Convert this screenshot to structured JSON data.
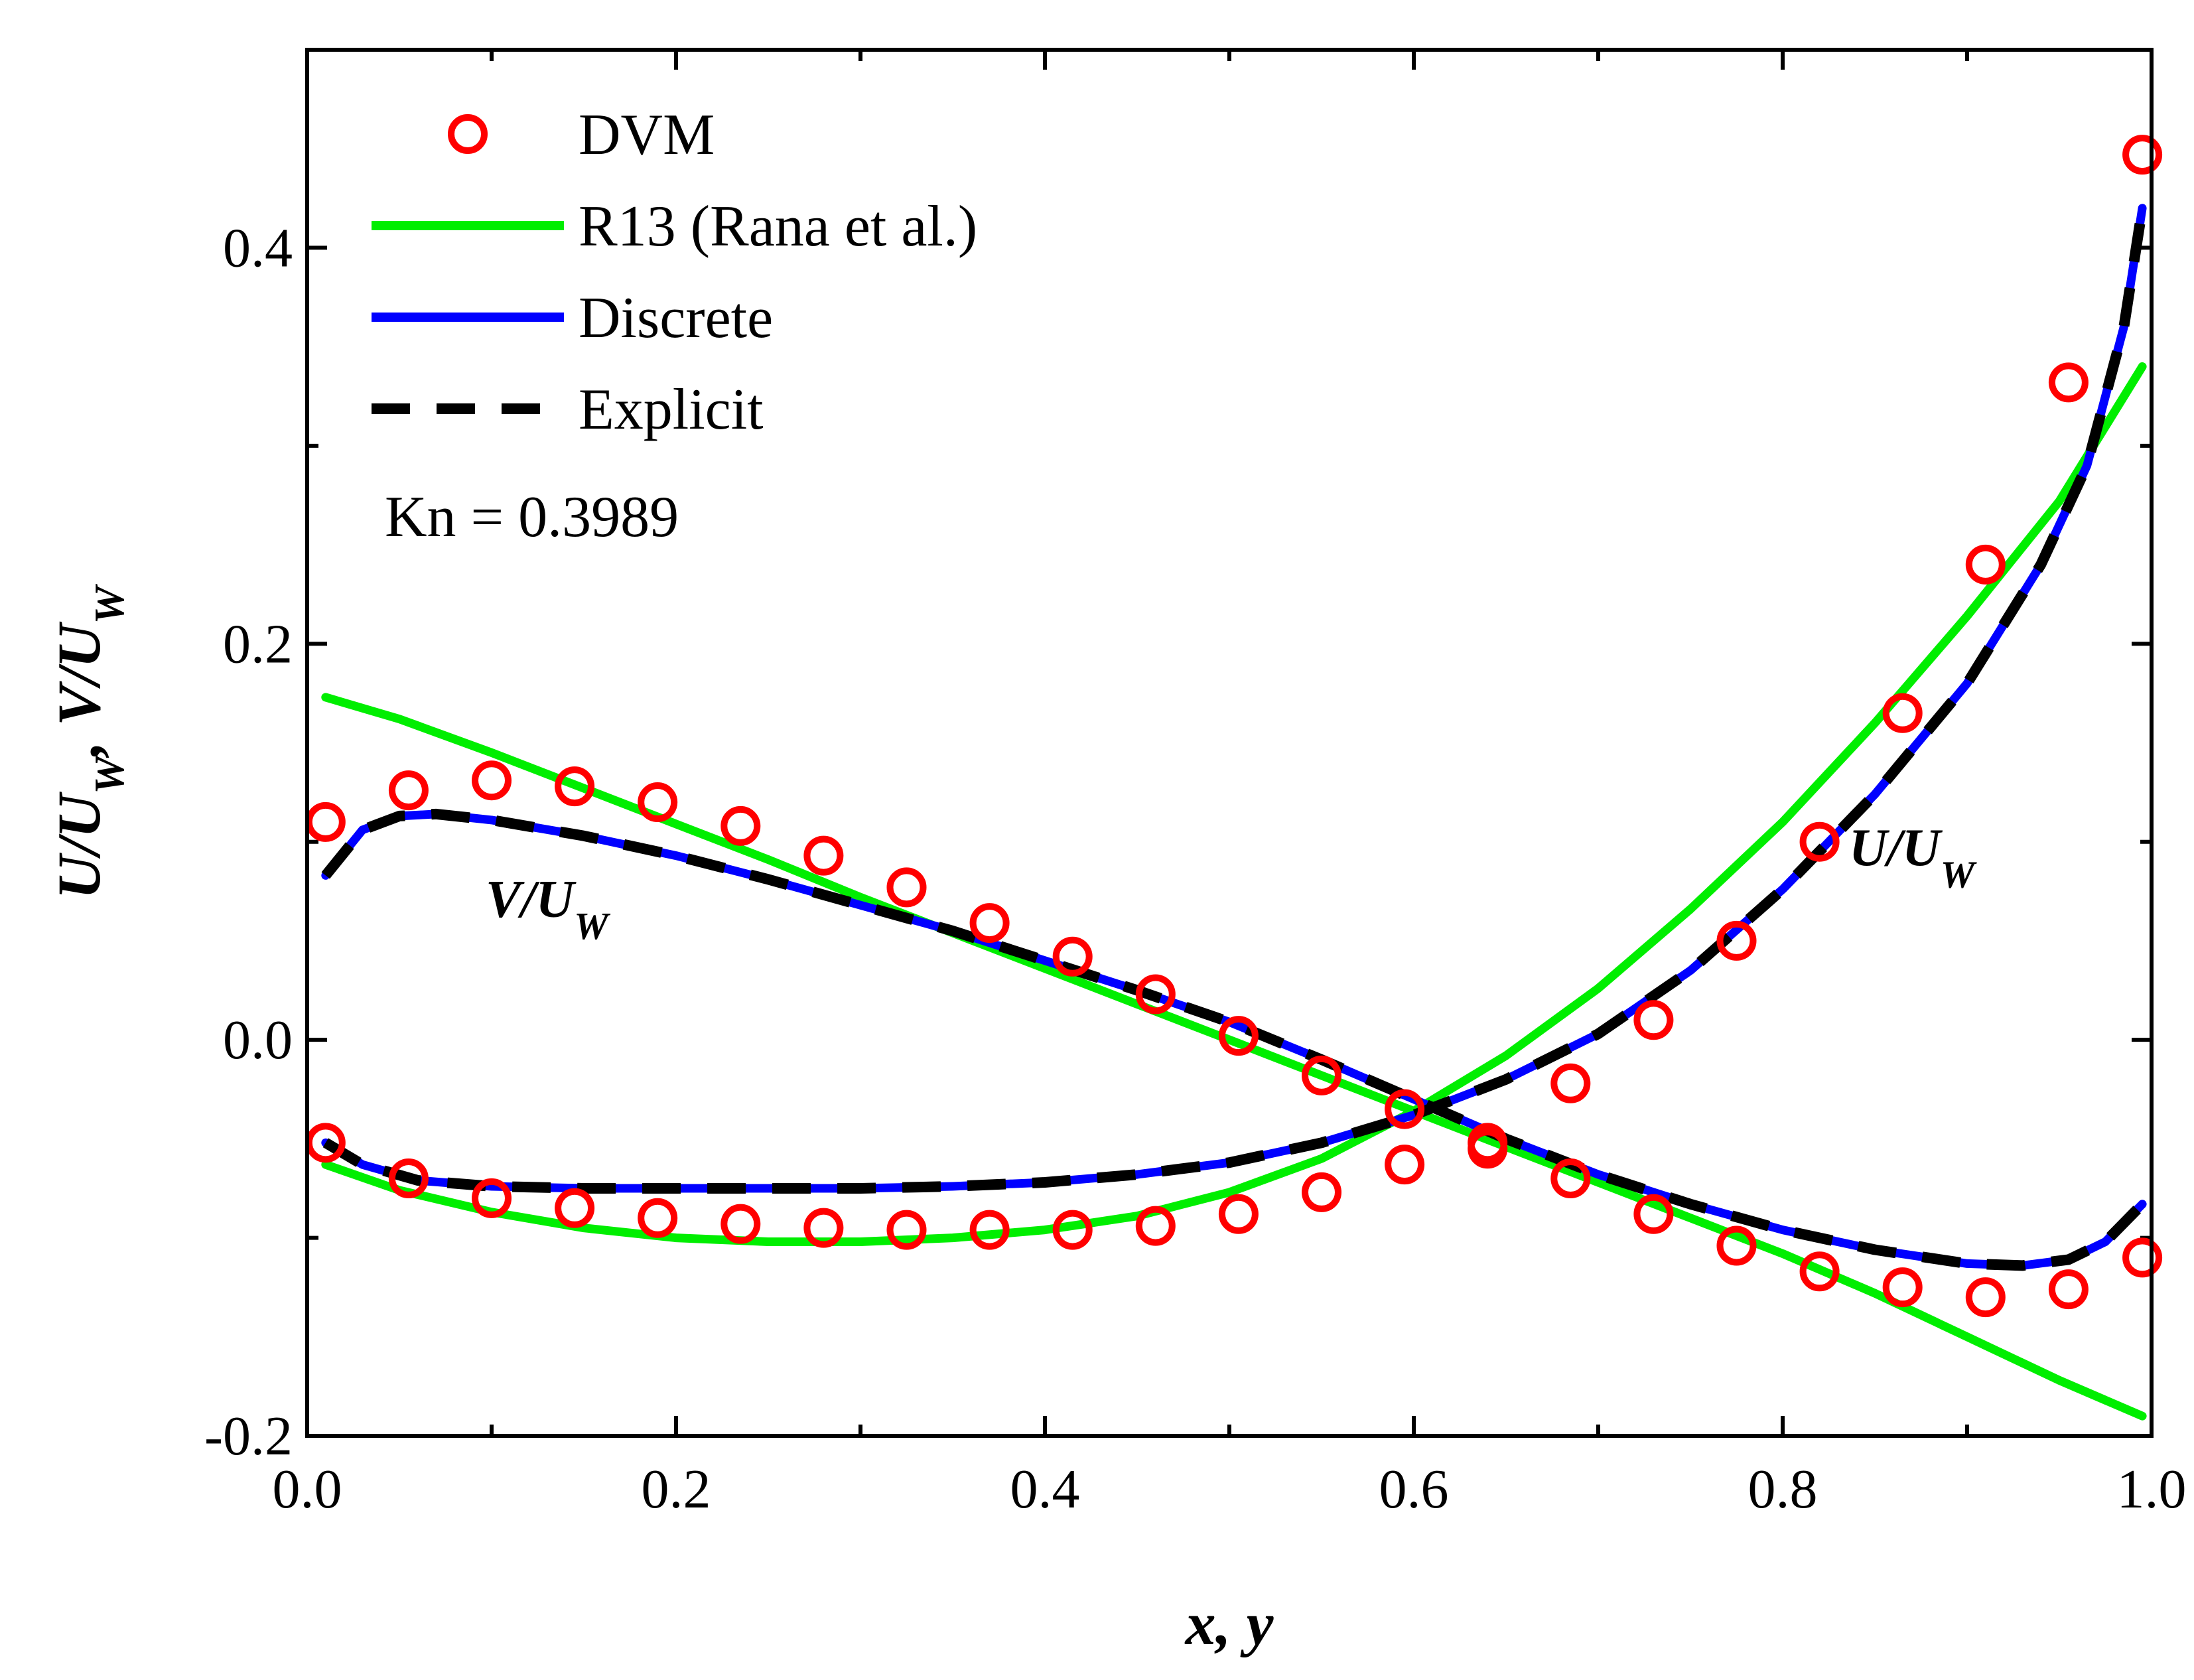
{
  "chart_data": {
    "type": "line",
    "title": "",
    "xlabel": "x, y",
    "ylabel": "U/U_W, V/U_W",
    "xlim": [
      0.0,
      1.0
    ],
    "ylim": [
      -0.2,
      0.5
    ],
    "xticks": [
      0.0,
      0.2,
      0.4,
      0.6,
      0.8,
      1.0
    ],
    "xtick_labels": [
      "0.0",
      "0.2",
      "0.4",
      "0.6",
      "0.8",
      "1.0"
    ],
    "yticks": [
      -0.2,
      0.0,
      0.2,
      0.4
    ],
    "ytick_labels": [
      "-0.2",
      "0.0",
      "0.2",
      "0.4"
    ],
    "legend_position": "top-left",
    "annotation": "Kn = 0.3989",
    "curve_labels": [
      {
        "main": "V/U",
        "sub": "W",
        "x": 0.13,
        "y": 0.062
      },
      {
        "main": "U/U",
        "sub": "W",
        "x": 0.87,
        "y": 0.088
      }
    ],
    "series": [
      {
        "name": "DVM",
        "style": "markers",
        "marker": "open-circle",
        "color": "#ff0000",
        "groups": {
          "U": {
            "x": [
              0.01,
              0.055,
              0.1,
              0.145,
              0.19,
              0.235,
              0.28,
              0.325,
              0.37,
              0.415,
              0.46,
              0.505,
              0.55,
              0.595,
              0.64,
              0.685,
              0.73,
              0.775,
              0.82,
              0.865,
              0.91,
              0.955,
              0.995
            ],
            "y": [
              -0.052,
              -0.07,
              -0.08,
              -0.085,
              -0.09,
              -0.093,
              -0.095,
              -0.096,
              -0.096,
              -0.096,
              -0.094,
              -0.088,
              -0.077,
              -0.063,
              -0.052,
              -0.022,
              0.01,
              0.05,
              0.1,
              0.165,
              0.24,
              0.332,
              0.447
            ]
          },
          "V": {
            "x": [
              0.01,
              0.055,
              0.1,
              0.145,
              0.19,
              0.235,
              0.28,
              0.325,
              0.37,
              0.415,
              0.46,
              0.505,
              0.55,
              0.595,
              0.64,
              0.685,
              0.73,
              0.775,
              0.82,
              0.865,
              0.91,
              0.955,
              0.995
            ],
            "y": [
              0.11,
              0.126,
              0.131,
              0.128,
              0.12,
              0.108,
              0.093,
              0.077,
              0.059,
              0.042,
              0.023,
              0.002,
              -0.018,
              -0.035,
              -0.055,
              -0.07,
              -0.088,
              -0.104,
              -0.117,
              -0.125,
              -0.13,
              -0.126,
              -0.11
            ]
          }
        }
      },
      {
        "name": "R13 (Rana et al.)",
        "style": "solid",
        "color": "#00ee00",
        "groups": {
          "U": {
            "x": [
              0.01,
              0.05,
              0.1,
              0.15,
              0.2,
              0.25,
              0.3,
              0.35,
              0.4,
              0.45,
              0.5,
              0.55,
              0.6,
              0.65,
              0.7,
              0.75,
              0.8,
              0.85,
              0.9,
              0.95,
              0.995
            ],
            "y": [
              -0.063,
              -0.076,
              -0.087,
              -0.095,
              -0.1,
              -0.102,
              -0.102,
              -0.1,
              -0.096,
              -0.089,
              -0.077,
              -0.06,
              -0.036,
              -0.008,
              0.026,
              0.066,
              0.11,
              0.16,
              0.214,
              0.272,
              0.34
            ]
          },
          "V": {
            "x": [
              0.01,
              0.05,
              0.1,
              0.15,
              0.2,
              0.25,
              0.3,
              0.35,
              0.4,
              0.45,
              0.5,
              0.55,
              0.6,
              0.65,
              0.7,
              0.75,
              0.8,
              0.85,
              0.9,
              0.95,
              0.995
            ],
            "y": [
              0.173,
              0.162,
              0.145,
              0.127,
              0.109,
              0.091,
              0.072,
              0.054,
              0.036,
              0.018,
              0.0,
              -0.018,
              -0.036,
              -0.054,
              -0.072,
              -0.09,
              -0.108,
              -0.128,
              -0.15,
              -0.172,
              -0.19
            ]
          }
        }
      },
      {
        "name": "Discrete",
        "style": "solid",
        "color": "#0000ff",
        "groups": {
          "U": {
            "x": [
              0.01,
              0.03,
              0.06,
              0.1,
              0.15,
              0.2,
              0.25,
              0.3,
              0.35,
              0.4,
              0.45,
              0.5,
              0.55,
              0.6,
              0.65,
              0.7,
              0.75,
              0.8,
              0.85,
              0.9,
              0.94,
              0.965,
              0.985,
              0.995
            ],
            "y": [
              -0.052,
              -0.063,
              -0.071,
              -0.074,
              -0.075,
              -0.075,
              -0.075,
              -0.075,
              -0.074,
              -0.072,
              -0.068,
              -0.062,
              -0.052,
              -0.038,
              -0.02,
              0.003,
              0.035,
              0.076,
              0.124,
              0.18,
              0.24,
              0.29,
              0.36,
              0.42
            ]
          },
          "V": {
            "x": [
              0.01,
              0.03,
              0.05,
              0.07,
              0.1,
              0.15,
              0.2,
              0.25,
              0.3,
              0.35,
              0.4,
              0.45,
              0.5,
              0.55,
              0.6,
              0.65,
              0.7,
              0.75,
              0.8,
              0.85,
              0.9,
              0.93,
              0.955,
              0.975,
              0.995
            ],
            "y": [
              0.083,
              0.106,
              0.113,
              0.114,
              0.111,
              0.103,
              0.093,
              0.081,
              0.068,
              0.055,
              0.04,
              0.025,
              0.009,
              -0.01,
              -0.03,
              -0.05,
              -0.068,
              -0.083,
              -0.096,
              -0.106,
              -0.113,
              -0.114,
              -0.111,
              -0.102,
              -0.083
            ]
          }
        }
      },
      {
        "name": "Explicit",
        "style": "dashed",
        "color": "#000000",
        "groups": {
          "U": {
            "x": [
              0.01,
              0.03,
              0.06,
              0.1,
              0.15,
              0.2,
              0.25,
              0.3,
              0.35,
              0.4,
              0.45,
              0.5,
              0.55,
              0.6,
              0.65,
              0.7,
              0.75,
              0.8,
              0.85,
              0.9,
              0.94,
              0.965,
              0.985,
              0.995
            ],
            "y": [
              -0.052,
              -0.063,
              -0.071,
              -0.074,
              -0.075,
              -0.075,
              -0.075,
              -0.075,
              -0.074,
              -0.072,
              -0.068,
              -0.062,
              -0.052,
              -0.038,
              -0.02,
              0.003,
              0.035,
              0.076,
              0.124,
              0.18,
              0.24,
              0.29,
              0.36,
              0.42
            ]
          },
          "V": {
            "x": [
              0.01,
              0.03,
              0.05,
              0.07,
              0.1,
              0.15,
              0.2,
              0.25,
              0.3,
              0.35,
              0.4,
              0.45,
              0.5,
              0.55,
              0.6,
              0.65,
              0.7,
              0.75,
              0.8,
              0.85,
              0.9,
              0.93,
              0.955,
              0.975,
              0.995
            ],
            "y": [
              0.083,
              0.106,
              0.113,
              0.114,
              0.111,
              0.103,
              0.093,
              0.081,
              0.068,
              0.055,
              0.04,
              0.025,
              0.009,
              -0.01,
              -0.03,
              -0.05,
              -0.068,
              -0.083,
              -0.096,
              -0.106,
              -0.113,
              -0.114,
              -0.111,
              -0.102,
              -0.083
            ]
          }
        }
      }
    ]
  }
}
